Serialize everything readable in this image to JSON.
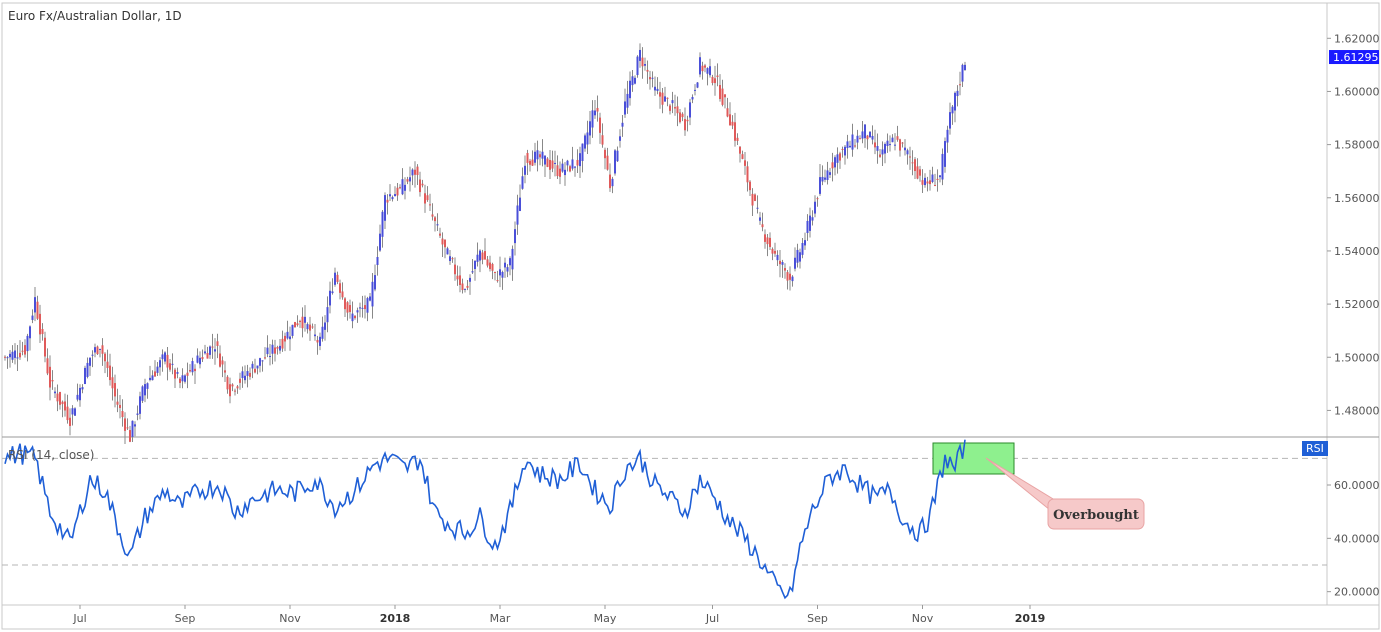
{
  "chart_data": [
    {
      "type": "candlestick",
      "title": "Euro Fx/Australian Dollar, 1D",
      "ylim": [
        1.47,
        1.625
      ],
      "y_ticks": [
        1.48,
        1.5,
        1.52,
        1.54,
        1.56,
        1.58,
        1.6,
        1.62
      ],
      "y_tick_labels": [
        "1.48000",
        "1.50000",
        "1.52000",
        "1.54000",
        "1.56000",
        "1.58000",
        "1.60000",
        "1.62000"
      ],
      "last_price_label": "1.61295",
      "last_price": 1.61295,
      "colors": {
        "up": "#4a4fd8",
        "down": "#e05a5a",
        "wick": "#888888",
        "price_badge": "#1a1aff"
      },
      "anchors": [
        {
          "i": 0,
          "p": 1.5
        },
        {
          "i": 8,
          "p": 1.503
        },
        {
          "i": 12,
          "p": 1.522
        },
        {
          "i": 18,
          "p": 1.49
        },
        {
          "i": 26,
          "p": 1.477
        },
        {
          "i": 34,
          "p": 1.5
        },
        {
          "i": 38,
          "p": 1.505
        },
        {
          "i": 44,
          "p": 1.485
        },
        {
          "i": 50,
          "p": 1.47
        },
        {
          "i": 56,
          "p": 1.49
        },
        {
          "i": 64,
          "p": 1.5
        },
        {
          "i": 70,
          "p": 1.49
        },
        {
          "i": 78,
          "p": 1.5
        },
        {
          "i": 84,
          "p": 1.505
        },
        {
          "i": 90,
          "p": 1.488
        },
        {
          "i": 98,
          "p": 1.495
        },
        {
          "i": 104,
          "p": 1.5
        },
        {
          "i": 110,
          "p": 1.505
        },
        {
          "i": 118,
          "p": 1.515
        },
        {
          "i": 126,
          "p": 1.505
        },
        {
          "i": 132,
          "p": 1.532
        },
        {
          "i": 138,
          "p": 1.515
        },
        {
          "i": 146,
          "p": 1.52
        },
        {
          "i": 152,
          "p": 1.56
        },
        {
          "i": 158,
          "p": 1.563
        },
        {
          "i": 164,
          "p": 1.57
        },
        {
          "i": 170,
          "p": 1.555
        },
        {
          "i": 176,
          "p": 1.54
        },
        {
          "i": 184,
          "p": 1.525
        },
        {
          "i": 190,
          "p": 1.54
        },
        {
          "i": 196,
          "p": 1.53
        },
        {
          "i": 202,
          "p": 1.535
        },
        {
          "i": 208,
          "p": 1.575
        },
        {
          "i": 214,
          "p": 1.575
        },
        {
          "i": 222,
          "p": 1.57
        },
        {
          "i": 230,
          "p": 1.574
        },
        {
          "i": 236,
          "p": 1.595
        },
        {
          "i": 242,
          "p": 1.565
        },
        {
          "i": 248,
          "p": 1.595
        },
        {
          "i": 254,
          "p": 1.614
        },
        {
          "i": 260,
          "p": 1.6
        },
        {
          "i": 266,
          "p": 1.595
        },
        {
          "i": 272,
          "p": 1.588
        },
        {
          "i": 278,
          "p": 1.61
        },
        {
          "i": 284,
          "p": 1.605
        },
        {
          "i": 290,
          "p": 1.59
        },
        {
          "i": 296,
          "p": 1.57
        },
        {
          "i": 302,
          "p": 1.55
        },
        {
          "i": 308,
          "p": 1.538
        },
        {
          "i": 314,
          "p": 1.53
        },
        {
          "i": 320,
          "p": 1.545
        },
        {
          "i": 326,
          "p": 1.565
        },
        {
          "i": 332,
          "p": 1.575
        },
        {
          "i": 338,
          "p": 1.58
        },
        {
          "i": 344,
          "p": 1.585
        },
        {
          "i": 350,
          "p": 1.576
        },
        {
          "i": 356,
          "p": 1.582
        },
        {
          "i": 362,
          "p": 1.575
        },
        {
          "i": 368,
          "p": 1.565
        },
        {
          "i": 374,
          "p": 1.568
        },
        {
          "i": 378,
          "p": 1.59
        },
        {
          "i": 384,
          "p": 1.612
        }
      ],
      "n_bars": 385
    },
    {
      "type": "line",
      "title": "RSI (14, close)",
      "badge": "RSI",
      "ylim": [
        15,
        78
      ],
      "y_ticks": [
        20,
        40,
        60
      ],
      "y_tick_labels": [
        "20.0000",
        "40.0000",
        "60.0000"
      ],
      "levels": [
        30,
        70
      ],
      "series": [
        {
          "name": "RSI (14, close)",
          "color": "#1f5fd6"
        }
      ],
      "anchors": [
        {
          "i": 0,
          "v": 70
        },
        {
          "i": 6,
          "v": 72
        },
        {
          "i": 12,
          "v": 70
        },
        {
          "i": 18,
          "v": 50
        },
        {
          "i": 26,
          "v": 38
        },
        {
          "i": 34,
          "v": 62
        },
        {
          "i": 40,
          "v": 58
        },
        {
          "i": 46,
          "v": 42
        },
        {
          "i": 50,
          "v": 33
        },
        {
          "i": 56,
          "v": 48
        },
        {
          "i": 64,
          "v": 58
        },
        {
          "i": 70,
          "v": 52
        },
        {
          "i": 78,
          "v": 58
        },
        {
          "i": 86,
          "v": 60
        },
        {
          "i": 92,
          "v": 50
        },
        {
          "i": 100,
          "v": 55
        },
        {
          "i": 108,
          "v": 58
        },
        {
          "i": 116,
          "v": 57
        },
        {
          "i": 124,
          "v": 62
        },
        {
          "i": 132,
          "v": 52
        },
        {
          "i": 140,
          "v": 58
        },
        {
          "i": 148,
          "v": 68
        },
        {
          "i": 154,
          "v": 70
        },
        {
          "i": 160,
          "v": 66
        },
        {
          "i": 166,
          "v": 70
        },
        {
          "i": 172,
          "v": 50
        },
        {
          "i": 178,
          "v": 45
        },
        {
          "i": 184,
          "v": 42
        },
        {
          "i": 190,
          "v": 48
        },
        {
          "i": 196,
          "v": 37
        },
        {
          "i": 202,
          "v": 50
        },
        {
          "i": 208,
          "v": 70
        },
        {
          "i": 214,
          "v": 64
        },
        {
          "i": 222,
          "v": 62
        },
        {
          "i": 230,
          "v": 68
        },
        {
          "i": 236,
          "v": 58
        },
        {
          "i": 242,
          "v": 52
        },
        {
          "i": 248,
          "v": 66
        },
        {
          "i": 254,
          "v": 70
        },
        {
          "i": 260,
          "v": 60
        },
        {
          "i": 266,
          "v": 55
        },
        {
          "i": 272,
          "v": 50
        },
        {
          "i": 278,
          "v": 62
        },
        {
          "i": 284,
          "v": 55
        },
        {
          "i": 290,
          "v": 46
        },
        {
          "i": 296,
          "v": 40
        },
        {
          "i": 302,
          "v": 32
        },
        {
          "i": 306,
          "v": 25
        },
        {
          "i": 310,
          "v": 20
        },
        {
          "i": 314,
          "v": 18
        },
        {
          "i": 318,
          "v": 36
        },
        {
          "i": 322,
          "v": 48
        },
        {
          "i": 326,
          "v": 56
        },
        {
          "i": 330,
          "v": 63
        },
        {
          "i": 336,
          "v": 66
        },
        {
          "i": 342,
          "v": 60
        },
        {
          "i": 348,
          "v": 55
        },
        {
          "i": 354,
          "v": 58
        },
        {
          "i": 360,
          "v": 46
        },
        {
          "i": 366,
          "v": 42
        },
        {
          "i": 370,
          "v": 48
        },
        {
          "i": 376,
          "v": 70
        },
        {
          "i": 380,
          "v": 66
        },
        {
          "i": 384,
          "v": 76
        }
      ],
      "n_points": 385
    }
  ],
  "x_axis": {
    "labels": [
      {
        "text": "Jul",
        "i": 30,
        "bold": false
      },
      {
        "text": "Sep",
        "i": 72,
        "bold": false
      },
      {
        "text": "Nov",
        "i": 114,
        "bold": false
      },
      {
        "text": "2018",
        "i": 156,
        "bold": true
      },
      {
        "text": "Mar",
        "i": 198,
        "bold": false
      },
      {
        "text": "May",
        "i": 240,
        "bold": false
      },
      {
        "text": "Jul",
        "i": 283,
        "bold": false
      },
      {
        "text": "Sep",
        "i": 325,
        "bold": false
      },
      {
        "text": "Nov",
        "i": 367,
        "bold": false
      },
      {
        "text": "2019",
        "i": 410,
        "bold": true
      }
    ]
  },
  "annotation": {
    "label": "Overbought",
    "box_fill": "#8ef08e",
    "callout_fill": "#f6c9c9"
  }
}
